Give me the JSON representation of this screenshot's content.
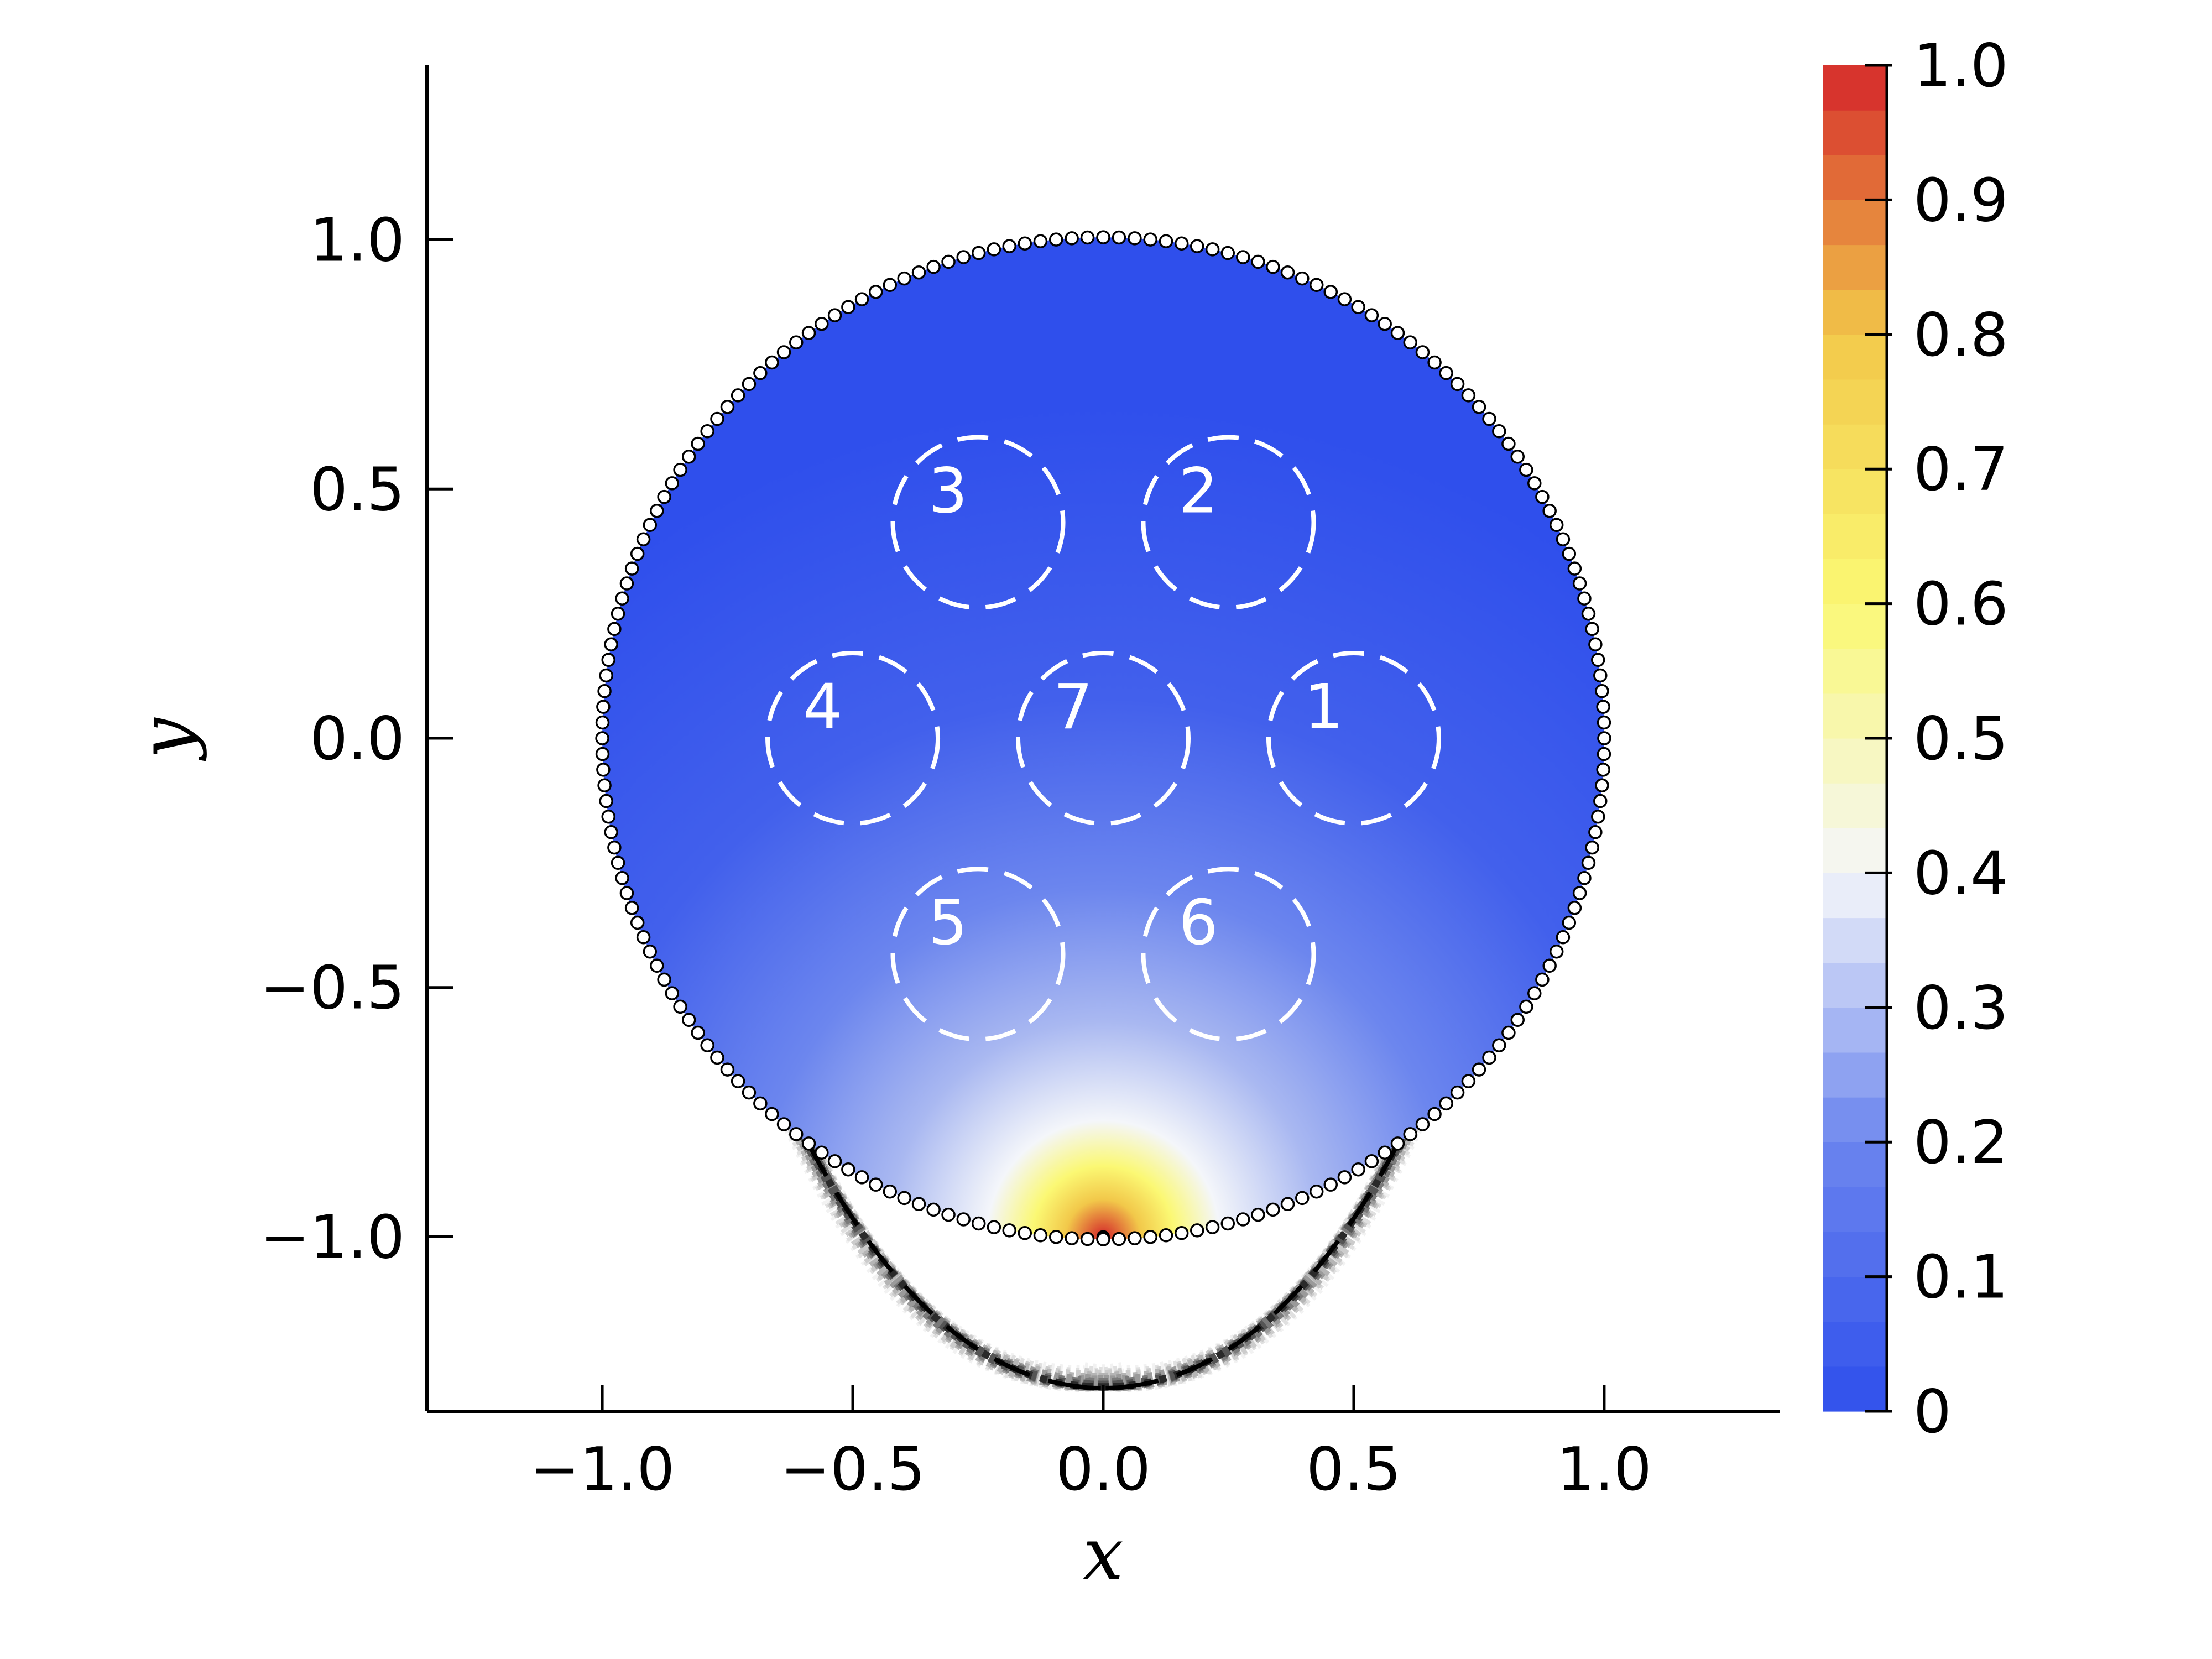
{
  "chart_data": {
    "type": "heatmap",
    "title": "",
    "xlabel": "x",
    "ylabel": "y",
    "xlim": [
      -1.35,
      1.35
    ],
    "ylim": [
      -1.35,
      1.35
    ],
    "xticks": [
      -1.0,
      -0.5,
      0.0,
      0.5,
      1.0
    ],
    "xtick_labels": [
      "−1.0",
      "−0.5",
      "0.0",
      "0.5",
      "1.0"
    ],
    "yticks": [
      -1.0,
      -0.5,
      0.0,
      0.5,
      1.0
    ],
    "ytick_labels": [
      "−1.0",
      "−0.5",
      "0.0",
      "0.5",
      "1.0"
    ],
    "grid": false,
    "domain": {
      "shape": "circle",
      "center": [
        0.0,
        0.0
      ],
      "radius": 1.0,
      "boundary_marker_count": 200
    },
    "source_point": [
      0.0,
      -1.0
    ],
    "field_peak_value": 1.0,
    "regions": [
      {
        "label": "1",
        "center": [
          0.5,
          0.0
        ],
        "radius": 0.17
      },
      {
        "label": "2",
        "center": [
          0.25,
          0.433
        ],
        "radius": 0.17
      },
      {
        "label": "3",
        "center": [
          -0.25,
          0.433
        ],
        "radius": 0.17
      },
      {
        "label": "4",
        "center": [
          -0.5,
          0.0
        ],
        "radius": 0.17
      },
      {
        "label": "5",
        "center": [
          -0.25,
          -0.433
        ],
        "radius": 0.17
      },
      {
        "label": "6",
        "center": [
          0.25,
          -0.433
        ],
        "radius": 0.17
      },
      {
        "label": "7",
        "center": [
          0.0,
          0.0
        ],
        "radius": 0.17
      }
    ],
    "colorbar": {
      "min": 0,
      "max": 1.0,
      "levels": 30,
      "ticks": [
        0,
        0.1,
        0.2,
        0.3,
        0.4,
        0.5,
        0.6,
        0.7,
        0.8,
        0.9,
        1.0
      ],
      "tick_labels": [
        "0",
        "0.1",
        "0.2",
        "0.3",
        "0.4",
        "0.5",
        "0.6",
        "0.7",
        "0.8",
        "0.9",
        "1.0"
      ],
      "colors": [
        "#2f4fec",
        "#6c86ee",
        "#f4f6fa",
        "#fbf873",
        "#f2c84a",
        "#d4262a"
      ]
    }
  }
}
